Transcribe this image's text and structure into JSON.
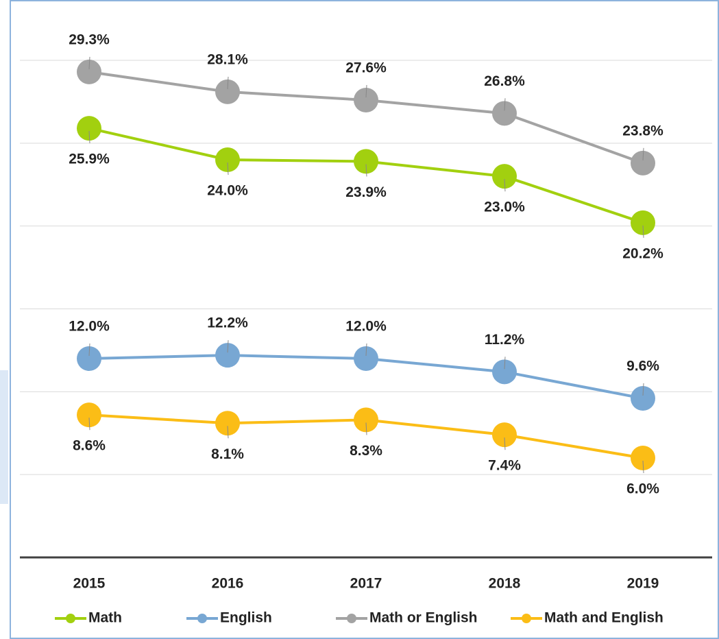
{
  "chart_data": {
    "type": "line",
    "categories": [
      "2015",
      "2016",
      "2017",
      "2018",
      "2019"
    ],
    "series": [
      {
        "name": "Math",
        "color": "#a2d00f",
        "values": [
          25.9,
          24.0,
          23.9,
          23.0,
          20.2
        ],
        "value_labels": [
          "25.9%",
          "24.0%",
          "23.9%",
          "23.0%",
          "20.2%"
        ]
      },
      {
        "name": "English",
        "color": "#78a7d3",
        "values": [
          12.0,
          12.2,
          12.0,
          11.2,
          9.6
        ],
        "value_labels": [
          "12.0%",
          "12.2%",
          "12.0%",
          "11.2%",
          "9.6%"
        ]
      },
      {
        "name": "Math or English",
        "color": "#a3a3a3",
        "values": [
          29.3,
          28.1,
          27.6,
          26.8,
          23.8
        ],
        "value_labels": [
          "29.3%",
          "28.1%",
          "27.6%",
          "26.8%",
          "23.8%"
        ]
      },
      {
        "name": "Math and English",
        "color": "#fbbd16",
        "values": [
          8.6,
          8.1,
          8.3,
          7.4,
          6.0
        ],
        "value_labels": [
          "8.6%",
          "8.1%",
          "8.3%",
          "7.4%",
          "6.0%"
        ]
      }
    ],
    "ylim": [
      0,
      30
    ],
    "yticks": [
      0,
      5,
      10,
      15,
      20,
      25,
      30
    ],
    "grid": true
  }
}
